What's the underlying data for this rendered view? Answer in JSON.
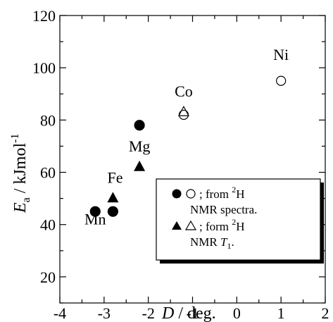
{
  "chart_data": {
    "type": "scatter",
    "xlabel": {
      "var": "D",
      "unit": " / deg."
    },
    "ylabel": {
      "var": "E",
      "sub": "a",
      "unit": " / kJmol",
      "sup": "-1"
    },
    "xlim": [
      -4,
      2
    ],
    "ylim": [
      10,
      120
    ],
    "xticks": [
      "-4",
      "-3",
      "-2",
      "-1",
      "0",
      "1",
      "2"
    ],
    "yticks": [
      "20",
      "40",
      "60",
      "80",
      "100",
      "120"
    ],
    "xtick_values": [
      -4,
      -3,
      -2,
      -1,
      0,
      1,
      2
    ],
    "ytick_values": [
      20,
      40,
      60,
      80,
      100,
      120
    ],
    "series": [
      {
        "key": "nmr_spectra_filled",
        "marker": "circle",
        "filled": true,
        "points": [
          {
            "x": -3.2,
            "y": 45
          },
          {
            "x": -2.8,
            "y": 45
          },
          {
            "x": -2.2,
            "y": 78
          }
        ]
      },
      {
        "key": "nmr_spectra_open",
        "marker": "circle",
        "filled": false,
        "points": [
          {
            "x": -1.2,
            "y": 82
          },
          {
            "x": 1.0,
            "y": 95
          }
        ]
      },
      {
        "key": "nmr_t1_filled",
        "marker": "triangle",
        "filled": true,
        "points": [
          {
            "x": -2.8,
            "y": 50
          },
          {
            "x": -2.2,
            "y": 62
          }
        ]
      },
      {
        "key": "nmr_t1_open",
        "marker": "triangle",
        "filled": false,
        "points": [
          {
            "x": -1.2,
            "y": 83
          }
        ]
      }
    ],
    "annotations": [
      {
        "text": "Mn",
        "x": -3.2,
        "y": 40
      },
      {
        "text": "Fe",
        "x": -2.75,
        "y": 56
      },
      {
        "text": "Mg",
        "x": -2.2,
        "y": 68
      },
      {
        "text": "Co",
        "x": -1.2,
        "y": 89
      },
      {
        "text": "Ni",
        "x": 1.0,
        "y": 103
      }
    ],
    "legend": {
      "placement": "bottom-right",
      "entries": [
        {
          "prefix": "; from ",
          "sup": "2",
          "nucleus": "H",
          "line2": "NMR spectra."
        },
        {
          "prefix": "; form ",
          "sup": "2",
          "nucleus": "H",
          "line2_main": "NMR ",
          "line2_var": "T",
          "line2_sub": "1",
          "line2_end": "."
        }
      ]
    }
  }
}
